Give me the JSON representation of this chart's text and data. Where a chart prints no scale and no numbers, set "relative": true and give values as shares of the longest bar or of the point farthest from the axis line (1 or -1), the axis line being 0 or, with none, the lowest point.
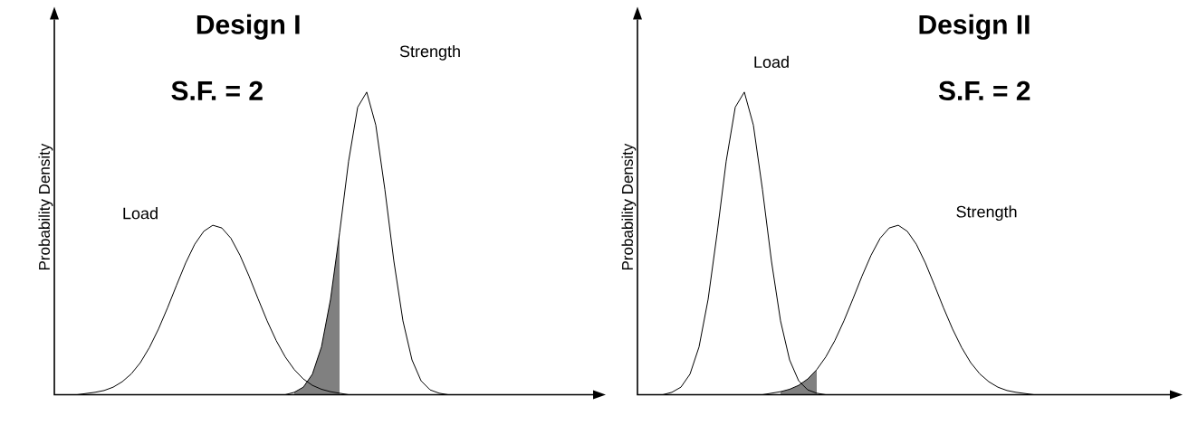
{
  "chart_data": [
    {
      "type": "line",
      "relative": true,
      "title": "Design I",
      "ylabel": "Probability Density",
      "annotations": [
        "S.F. = 2"
      ],
      "categories": [
        null,
        null,
        null,
        null,
        null,
        null,
        null,
        null,
        null,
        null,
        null,
        null,
        null,
        null,
        null,
        null,
        null,
        null,
        null,
        null,
        null,
        null,
        null,
        null,
        null,
        null,
        null,
        null,
        null,
        null,
        null,
        null,
        null,
        null,
        null,
        null,
        null,
        null,
        null,
        null,
        null,
        null,
        null,
        null,
        null,
        null,
        null,
        null,
        null,
        null,
        null,
        null,
        null,
        null,
        null,
        null,
        null
      ],
      "series": [
        {
          "type": "area",
          "color": "#808080",
          "values": [
            null,
            null,
            null,
            null,
            null,
            null,
            null,
            null,
            null,
            null,
            null,
            null,
            null,
            null,
            null,
            null,
            null,
            null,
            null,
            null,
            null,
            null,
            null,
            null,
            null,
            null,
            0.008,
            0.025,
            0.068,
            0.158,
            0.315,
            0.534,
            null,
            null,
            null,
            null,
            null,
            null,
            null,
            null,
            null,
            null,
            null,
            null,
            null,
            null,
            null,
            null,
            null,
            null,
            null,
            null,
            null,
            null,
            null,
            null,
            null
          ]
        },
        {
          "name": "Load",
          "color": "#000000",
          "values": [
            null,
            null,
            0,
            0.004,
            0.008,
            0.014,
            0.025,
            0.043,
            0.069,
            0.106,
            0.156,
            0.217,
            0.287,
            0.362,
            0.435,
            0.497,
            0.54,
            0.56,
            0.551,
            0.517,
            0.461,
            0.392,
            0.317,
            0.244,
            0.179,
            0.125,
            0.083,
            0.052,
            0.031,
            0.018,
            0.01,
            0.005,
            0,
            null,
            null,
            null,
            null,
            null,
            null,
            null,
            null,
            null,
            null,
            null,
            null,
            null,
            null,
            null,
            null,
            null,
            null,
            null,
            null,
            null,
            null,
            null,
            null
          ]
        },
        {
          "name": "Strength",
          "color": "#000000",
          "values": [
            null,
            null,
            null,
            null,
            null,
            null,
            null,
            null,
            null,
            null,
            null,
            null,
            null,
            null,
            null,
            null,
            null,
            null,
            null,
            null,
            null,
            null,
            null,
            null,
            null,
            0,
            0.008,
            0.025,
            0.068,
            0.158,
            0.315,
            0.534,
            0.772,
            0.95,
            1,
            0.891,
            0.679,
            0.441,
            0.244,
            0.115,
            0.046,
            0.016,
            0.005,
            0,
            null,
            null,
            null,
            null,
            null,
            null,
            null,
            null,
            null,
            null,
            null,
            null,
            null
          ]
        }
      ]
    },
    {
      "type": "line",
      "relative": true,
      "title": "Design II",
      "ylabel": "Probability Density",
      "annotations": [
        "S.F. = 2"
      ],
      "categories": [
        null,
        null,
        null,
        null,
        null,
        null,
        null,
        null,
        null,
        null,
        null,
        null,
        null,
        null,
        null,
        null,
        null,
        null,
        null,
        null,
        null,
        null,
        null,
        null,
        null,
        null,
        null,
        null,
        null,
        null,
        null,
        null,
        null,
        null,
        null,
        null,
        null,
        null,
        null,
        null,
        null,
        null,
        null,
        null,
        null,
        null,
        null,
        null,
        null,
        null,
        null,
        null,
        null,
        null,
        null,
        null,
        null
      ],
      "series": [
        {
          "type": "area",
          "color": "#808080",
          "values": [
            null,
            null,
            null,
            null,
            null,
            null,
            null,
            null,
            null,
            null,
            null,
            null,
            null,
            null,
            null,
            0.01,
            0.018,
            0.031,
            0.052,
            0.083,
            null,
            null,
            null,
            null,
            null,
            null,
            null,
            null,
            null,
            null,
            null,
            null,
            null,
            null,
            null,
            null,
            null,
            null,
            null,
            null,
            null,
            null,
            null,
            null,
            null,
            null,
            null,
            null,
            null,
            null,
            null,
            null,
            null,
            null,
            null,
            null,
            null
          ]
        },
        {
          "name": "Load",
          "color": "#000000",
          "values": [
            null,
            null,
            0,
            0.008,
            0.025,
            0.068,
            0.158,
            0.315,
            0.534,
            0.772,
            0.95,
            1,
            0.891,
            0.679,
            0.441,
            0.244,
            0.115,
            0.046,
            0.016,
            0.005,
            0,
            null,
            null,
            null,
            null,
            null,
            null,
            null,
            null,
            null,
            null,
            null,
            null,
            null,
            null,
            null,
            null,
            null,
            null,
            null,
            null,
            null,
            null,
            null,
            null,
            null,
            null,
            null,
            null,
            null,
            null,
            null,
            null,
            null,
            null,
            null,
            null
          ]
        },
        {
          "name": "Strength",
          "color": "#000000",
          "values": [
            null,
            null,
            null,
            null,
            null,
            null,
            null,
            null,
            null,
            null,
            null,
            null,
            null,
            0,
            0.005,
            0.01,
            0.018,
            0.031,
            0.052,
            0.083,
            0.125,
            0.179,
            0.244,
            0.317,
            0.392,
            0.461,
            0.517,
            0.551,
            0.56,
            0.54,
            0.497,
            0.435,
            0.362,
            0.287,
            0.217,
            0.156,
            0.106,
            0.069,
            0.043,
            0.025,
            0.014,
            0.008,
            0.004,
            0,
            null,
            null,
            null,
            null,
            null,
            null,
            null,
            null,
            null,
            null,
            null,
            null,
            null
          ]
        }
      ]
    }
  ]
}
